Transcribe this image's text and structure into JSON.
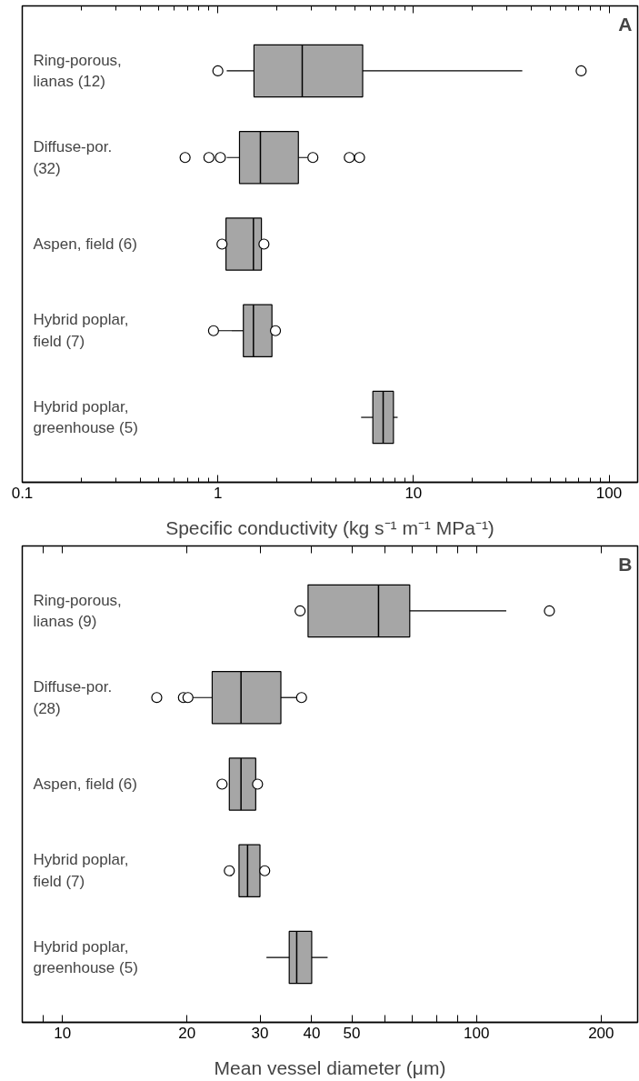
{
  "chart_data": [
    {
      "type": "box",
      "orientation": "horizontal",
      "log": "x",
      "grid": false,
      "color": "#a6a6a6",
      "categories": [
        "Ring-porous,\nlianas (12)",
        "Diffuse-por.\n(32)",
        "Aspen, field (6)",
        "Hybrid poplar,\nfield (7)",
        "Hybrid poplar,\ngreenhouse (5)"
      ],
      "boxes": [
        {
          "low": 1.11,
          "q1": 1.53,
          "median": 2.7,
          "q3": 5.5,
          "high": 36,
          "outliers": [
            1.0,
            72
          ]
        },
        {
          "low": 1.11,
          "q1": 1.29,
          "median": 1.65,
          "q3": 2.58,
          "high": 2.87,
          "outliers": [
            0.68,
            0.9,
            1.03,
            3.06,
            4.7,
            5.3
          ]
        },
        {
          "low": 1.1,
          "q1": 1.1,
          "median": 1.52,
          "q3": 1.67,
          "high": 1.67,
          "outliers": [
            1.05,
            1.72
          ]
        },
        {
          "low": 1.0,
          "q1": 1.35,
          "median": 1.52,
          "q3": 1.89,
          "high": 1.89,
          "outliers": [
            0.95,
            1.97
          ]
        },
        {
          "low": 5.4,
          "q1": 6.2,
          "median": 7.0,
          "q3": 7.9,
          "high": 8.3
        }
      ],
      "xlim": [
        0.1,
        140
      ],
      "xticks": [
        0.1,
        1,
        10,
        100
      ],
      "xlabel": "Specific conductivity (kg s⁻¹ m⁻¹ MPa⁻¹)",
      "annotations": [
        "A"
      ]
    },
    {
      "type": "box",
      "orientation": "horizontal",
      "log": "x",
      "grid": false,
      "color": "#a6a6a6",
      "categories": [
        "Ring-porous,\nlianas (9)",
        "Diffuse-por.\n(28)",
        "Aspen, field (6)",
        "Hybrid poplar,\nfield (7)",
        "Hybrid poplar,\ngreenhouse (5)"
      ],
      "boxes": [
        {
          "low": 39.2,
          "q1": 39.2,
          "median": 58,
          "q3": 69,
          "high": 118,
          "outliers": [
            37.5,
            150
          ]
        },
        {
          "low": 20.6,
          "q1": 23.0,
          "median": 27.0,
          "q3": 33.7,
          "high": 37.5,
          "outliers": [
            16.9,
            19.6,
            20.1,
            37.8
          ]
        },
        {
          "low": 25.3,
          "q1": 25.3,
          "median": 27.0,
          "q3": 29.3,
          "high": 29.3,
          "outliers": [
            24.3,
            29.6
          ]
        },
        {
          "low": 26.7,
          "q1": 26.7,
          "median": 28.0,
          "q3": 30.0,
          "high": 30.0,
          "outliers": [
            25.3,
            30.8
          ]
        },
        {
          "low": 31.1,
          "q1": 35.3,
          "median": 36.8,
          "q3": 40.0,
          "high": 43.7
        }
      ],
      "xlim": [
        8,
        245
      ],
      "xticks": [
        {
          "value": 9,
          "label": null
        },
        10,
        20,
        30,
        40,
        50,
        {
          "value": 60,
          "label": null
        },
        {
          "value": 70,
          "label": null
        },
        {
          "value": 80,
          "label": null
        },
        {
          "value": 90,
          "label": null
        },
        100,
        200
      ],
      "xlabel": "Mean vessel diameter (μm)",
      "annotations": [
        "B"
      ]
    }
  ]
}
